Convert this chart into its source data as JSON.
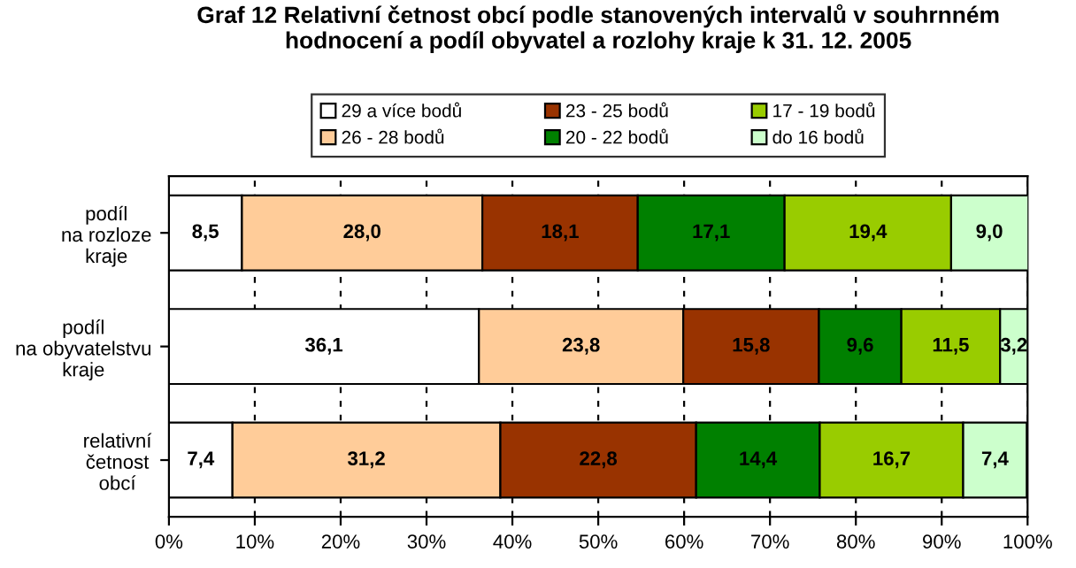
{
  "chart_data": {
    "type": "bar",
    "orientation": "horizontal",
    "stacked": true,
    "title": "Graf 12 Relativní četnost obcí podle stanovených intervalů v souhrnném\nhodnocení a podíl obyvatel a rozlohy kraje k 31. 12. 2005",
    "categories": [
      "podíl\nna rozloze\nkraje",
      "podíl\nna obyvatelstvu\nkraje",
      "relativní\nčetnost\nobcí"
    ],
    "series": [
      {
        "name": "29 a více bodů",
        "color": "#ffffff",
        "values": [
          8.5,
          36.1,
          7.4
        ],
        "value_labels": [
          "8,5",
          "36,1",
          "7,4"
        ]
      },
      {
        "name": "26 - 28 bodů",
        "color": "#ffcc99",
        "values": [
          28.0,
          23.8,
          31.2
        ],
        "value_labels": [
          "28,0",
          "23,8",
          "31,2"
        ]
      },
      {
        "name": "23 - 25 bodů",
        "color": "#993300",
        "values": [
          18.1,
          15.8,
          22.8
        ],
        "value_labels": [
          "18,1",
          "15,8",
          "22,8"
        ]
      },
      {
        "name": "20 - 22 bodů",
        "color": "#008000",
        "values": [
          17.1,
          9.6,
          14.4
        ],
        "value_labels": [
          "17,1",
          "9,6",
          "14,4"
        ]
      },
      {
        "name": "17 - 19 bodů",
        "color": "#99cc00",
        "values": [
          19.4,
          11.5,
          16.7
        ],
        "value_labels": [
          "19,4",
          "11,5",
          "16,7"
        ]
      },
      {
        "name": "do 16 bodů",
        "color": "#ccffcc",
        "values": [
          9.0,
          3.2,
          7.4
        ],
        "value_labels": [
          "9,0",
          "3,2",
          "7,4"
        ]
      }
    ],
    "xlim": [
      0,
      100
    ],
    "xticks": [
      {
        "value": 0,
        "label": "0%"
      },
      {
        "value": 10,
        "label": "10%"
      },
      {
        "value": 20,
        "label": "20%"
      },
      {
        "value": 30,
        "label": "30%"
      },
      {
        "value": 40,
        "label": "40%"
      },
      {
        "value": 50,
        "label": "50%"
      },
      {
        "value": 60,
        "label": "60%"
      },
      {
        "value": 70,
        "label": "70%"
      },
      {
        "value": 80,
        "label": "80%"
      },
      {
        "value": 90,
        "label": "90%"
      },
      {
        "value": 100,
        "label": "100%"
      }
    ],
    "grid": "x",
    "legend": "top"
  }
}
